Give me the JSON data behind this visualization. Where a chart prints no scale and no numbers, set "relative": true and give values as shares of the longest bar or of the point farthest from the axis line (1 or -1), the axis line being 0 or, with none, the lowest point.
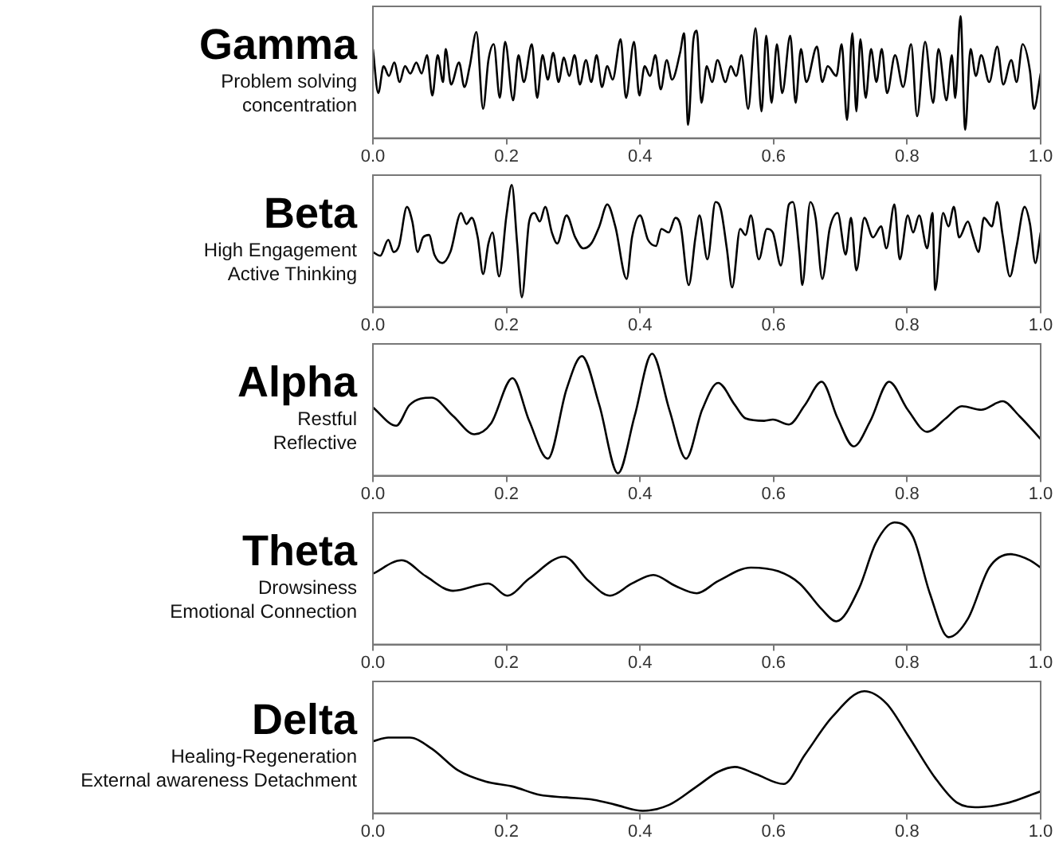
{
  "chart_data": [
    {
      "type": "line",
      "title": "Gamma",
      "annotations": [
        "Problem solving",
        "concentration"
      ],
      "relative": true,
      "marker": "none",
      "color": "#000000",
      "xlim": [
        0,
        1
      ],
      "xticks": [
        {
          "value": 0,
          "label": "0.0"
        },
        {
          "value": 0.2,
          "label": "0.2"
        },
        {
          "value": 0.4,
          "label": "0.4"
        },
        {
          "value": 0.6,
          "label": "0.6"
        },
        {
          "value": 0.8,
          "label": "0.8"
        },
        {
          "value": 1,
          "label": "1.0"
        }
      ],
      "x": [
        0,
        0.008,
        0.016,
        0.024,
        0.032,
        0.04,
        0.048,
        0.056,
        0.065,
        0.073,
        0.081,
        0.089,
        0.097,
        0.105,
        0.109,
        0.117,
        0.129,
        0.137,
        0.145,
        0.155,
        0.165,
        0.173,
        0.181,
        0.19,
        0.198,
        0.21,
        0.218,
        0.226,
        0.238,
        0.246,
        0.254,
        0.262,
        0.27,
        0.278,
        0.286,
        0.294,
        0.302,
        0.31,
        0.319,
        0.327,
        0.335,
        0.343,
        0.351,
        0.359,
        0.371,
        0.379,
        0.391,
        0.399,
        0.407,
        0.415,
        0.423,
        0.431,
        0.44,
        0.448,
        0.46,
        0.466,
        0.472,
        0.48,
        0.485,
        0.492,
        0.5,
        0.508,
        0.516,
        0.528,
        0.536,
        0.544,
        0.552,
        0.562,
        0.573,
        0.582,
        0.589,
        0.597,
        0.605,
        0.613,
        0.625,
        0.633,
        0.641,
        0.649,
        0.665,
        0.673,
        0.681,
        0.694,
        0.702,
        0.71,
        0.718,
        0.724,
        0.73,
        0.738,
        0.746,
        0.754,
        0.762,
        0.77,
        0.782,
        0.794,
        0.806,
        0.815,
        0.827,
        0.839,
        0.847,
        0.859,
        0.867,
        0.872,
        0.88,
        0.887,
        0.895,
        0.903,
        0.911,
        0.923,
        0.935,
        0.944,
        0.956,
        0.964,
        0.973,
        0.984,
        0.99,
        1
      ],
      "values": [
        0.73,
        0.37,
        0.59,
        0.51,
        0.62,
        0.46,
        0.59,
        0.53,
        0.62,
        0.53,
        0.68,
        0.35,
        0.68,
        0.46,
        0.73,
        0.44,
        0.62,
        0.42,
        0.59,
        0.87,
        0.24,
        0.64,
        0.77,
        0.33,
        0.79,
        0.31,
        0.68,
        0.46,
        0.77,
        0.33,
        0.68,
        0.48,
        0.7,
        0.46,
        0.66,
        0.51,
        0.68,
        0.44,
        0.64,
        0.46,
        0.68,
        0.42,
        0.59,
        0.48,
        0.81,
        0.33,
        0.79,
        0.35,
        0.59,
        0.51,
        0.68,
        0.4,
        0.64,
        0.48,
        0.7,
        0.86,
        0.11,
        0.81,
        0.88,
        0.29,
        0.59,
        0.46,
        0.64,
        0.46,
        0.59,
        0.51,
        0.68,
        0.24,
        0.9,
        0.22,
        0.84,
        0.29,
        0.77,
        0.37,
        0.84,
        0.29,
        0.73,
        0.46,
        0.75,
        0.46,
        0.59,
        0.51,
        0.77,
        0.15,
        0.86,
        0.22,
        0.81,
        0.33,
        0.73,
        0.46,
        0.73,
        0.37,
        0.68,
        0.42,
        0.77,
        0.18,
        0.79,
        0.29,
        0.73,
        0.31,
        0.68,
        0.33,
        1.0,
        0.07,
        0.73,
        0.51,
        0.68,
        0.46,
        0.75,
        0.44,
        0.64,
        0.46,
        0.77,
        0.55,
        0.24,
        0.53
      ]
    },
    {
      "type": "line",
      "title": "Beta",
      "annotations": [
        "High Engagement",
        "Active Thinking"
      ],
      "relative": true,
      "marker": "none",
      "color": "#000000",
      "xlim": [
        0,
        1
      ],
      "xticks": [
        {
          "value": 0,
          "label": "0.0"
        },
        {
          "value": 0.2,
          "label": "0.2"
        },
        {
          "value": 0.4,
          "label": "0.4"
        },
        {
          "value": 0.6,
          "label": "0.6"
        },
        {
          "value": 0.8,
          "label": "0.8"
        },
        {
          "value": 1,
          "label": "1.0"
        }
      ],
      "x": [
        0,
        0.011,
        0.023,
        0.031,
        0.039,
        0.051,
        0.059,
        0.067,
        0.075,
        0.084,
        0.092,
        0.104,
        0.116,
        0.132,
        0.14,
        0.148,
        0.157,
        0.165,
        0.173,
        0.179,
        0.189,
        0.2,
        0.208,
        0.216,
        0.223,
        0.234,
        0.242,
        0.25,
        0.258,
        0.268,
        0.276,
        0.29,
        0.303,
        0.315,
        0.327,
        0.339,
        0.351,
        0.363,
        0.38,
        0.388,
        0.4,
        0.412,
        0.424,
        0.432,
        0.443,
        0.453,
        0.461,
        0.473,
        0.483,
        0.489,
        0.501,
        0.513,
        0.521,
        0.53,
        0.538,
        0.55,
        0.558,
        0.566,
        0.578,
        0.59,
        0.599,
        0.611,
        0.623,
        0.629,
        0.639,
        0.643,
        0.655,
        0.663,
        0.673,
        0.684,
        0.696,
        0.708,
        0.716,
        0.724,
        0.736,
        0.749,
        0.761,
        0.769,
        0.781,
        0.789,
        0.801,
        0.809,
        0.818,
        0.83,
        0.838,
        0.842,
        0.854,
        0.862,
        0.87,
        0.878,
        0.891,
        0.899,
        0.907,
        0.915,
        0.927,
        0.935,
        0.943,
        0.954,
        0.964,
        0.976,
        0.984,
        0.992,
        1
      ],
      "values": [
        0.45,
        0.42,
        0.55,
        0.45,
        0.5,
        0.82,
        0.7,
        0.45,
        0.57,
        0.59,
        0.43,
        0.36,
        0.45,
        0.77,
        0.68,
        0.73,
        0.57,
        0.27,
        0.52,
        0.61,
        0.25,
        0.75,
        1.0,
        0.52,
        0.08,
        0.7,
        0.77,
        0.7,
        0.82,
        0.61,
        0.52,
        0.75,
        0.57,
        0.48,
        0.52,
        0.66,
        0.84,
        0.66,
        0.23,
        0.57,
        0.75,
        0.55,
        0.5,
        0.64,
        0.61,
        0.73,
        0.66,
        0.18,
        0.57,
        0.75,
        0.39,
        0.86,
        0.8,
        0.48,
        0.16,
        0.64,
        0.59,
        0.75,
        0.39,
        0.64,
        0.61,
        0.34,
        0.84,
        0.86,
        0.43,
        0.18,
        0.86,
        0.73,
        0.23,
        0.64,
        0.77,
        0.43,
        0.73,
        0.3,
        0.73,
        0.57,
        0.66,
        0.48,
        0.84,
        0.39,
        0.75,
        0.61,
        0.75,
        0.48,
        0.77,
        0.14,
        0.77,
        0.66,
        0.82,
        0.57,
        0.7,
        0.57,
        0.45,
        0.73,
        0.66,
        0.86,
        0.59,
        0.25,
        0.5,
        0.82,
        0.68,
        0.36,
        0.61
      ]
    },
    {
      "type": "line",
      "title": "Alpha",
      "annotations": [
        "Restful",
        "Reflective"
      ],
      "relative": true,
      "marker": "none",
      "color": "#000000",
      "xlim": [
        0,
        1
      ],
      "xticks": [
        {
          "value": 0,
          "label": "0.0"
        },
        {
          "value": 0.2,
          "label": "0.2"
        },
        {
          "value": 0.4,
          "label": "0.4"
        },
        {
          "value": 0.6,
          "label": "0.6"
        },
        {
          "value": 0.8,
          "label": "0.8"
        },
        {
          "value": 1,
          "label": "1.0"
        }
      ],
      "x": [
        0,
        0.035,
        0.055,
        0.088,
        0.12,
        0.152,
        0.177,
        0.209,
        0.234,
        0.262,
        0.29,
        0.313,
        0.339,
        0.367,
        0.392,
        0.418,
        0.444,
        0.469,
        0.493,
        0.517,
        0.542,
        0.558,
        0.586,
        0.599,
        0.623,
        0.647,
        0.672,
        0.696,
        0.72,
        0.745,
        0.773,
        0.801,
        0.83,
        0.858,
        0.882,
        0.911,
        0.943,
        0.968,
        1
      ],
      "values": [
        0.56,
        0.41,
        0.58,
        0.64,
        0.49,
        0.34,
        0.43,
        0.8,
        0.45,
        0.14,
        0.71,
        0.98,
        0.58,
        0.02,
        0.49,
        1.0,
        0.54,
        0.14,
        0.54,
        0.76,
        0.58,
        0.47,
        0.45,
        0.46,
        0.42,
        0.58,
        0.77,
        0.47,
        0.24,
        0.45,
        0.77,
        0.54,
        0.36,
        0.47,
        0.57,
        0.54,
        0.61,
        0.49,
        0.3
      ]
    },
    {
      "type": "line",
      "title": "Theta",
      "annotations": [
        "Drowsiness",
        "Emotional Connection"
      ],
      "relative": true,
      "marker": "none",
      "color": "#000000",
      "xlim": [
        0,
        1
      ],
      "xticks": [
        {
          "value": 0,
          "label": "0.0"
        },
        {
          "value": 0.2,
          "label": "0.2"
        },
        {
          "value": 0.4,
          "label": "0.4"
        },
        {
          "value": 0.6,
          "label": "0.6"
        },
        {
          "value": 0.8,
          "label": "0.8"
        },
        {
          "value": 1,
          "label": "1.0"
        }
      ],
      "x": [
        0,
        0.043,
        0.079,
        0.12,
        0.173,
        0.201,
        0.234,
        0.286,
        0.323,
        0.355,
        0.388,
        0.42,
        0.453,
        0.485,
        0.517,
        0.566,
        0.607,
        0.639,
        0.672,
        0.694,
        0.728,
        0.753,
        0.781,
        0.809,
        0.834,
        0.862,
        0.891,
        0.923,
        0.955,
        0.984,
        1
      ],
      "values": [
        0.58,
        0.69,
        0.56,
        0.44,
        0.5,
        0.4,
        0.54,
        0.72,
        0.52,
        0.4,
        0.5,
        0.57,
        0.48,
        0.42,
        0.52,
        0.63,
        0.6,
        0.5,
        0.29,
        0.19,
        0.46,
        0.83,
        1.0,
        0.88,
        0.42,
        0.06,
        0.21,
        0.63,
        0.74,
        0.69,
        0.63
      ]
    },
    {
      "type": "line",
      "title": "Delta",
      "annotations": [
        "Healing-Regeneration",
        "External awareness Detachment"
      ],
      "relative": true,
      "marker": "none",
      "color": "#000000",
      "xlim": [
        0,
        1
      ],
      "xticks": [
        {
          "value": 0,
          "label": "0.0"
        },
        {
          "value": 0.2,
          "label": "0.2"
        },
        {
          "value": 0.4,
          "label": "0.4"
        },
        {
          "value": 0.6,
          "label": "0.6"
        },
        {
          "value": 0.8,
          "label": "0.8"
        },
        {
          "value": 1,
          "label": "1.0"
        }
      ],
      "x": [
        0,
        0.023,
        0.055,
        0.088,
        0.128,
        0.169,
        0.209,
        0.25,
        0.29,
        0.331,
        0.363,
        0.404,
        0.444,
        0.485,
        0.517,
        0.542,
        0.574,
        0.615,
        0.647,
        0.688,
        0.736,
        0.769,
        0.801,
        0.842,
        0.874,
        0.907,
        0.947,
        1
      ],
      "values": [
        0.59,
        0.62,
        0.62,
        0.53,
        0.35,
        0.26,
        0.22,
        0.15,
        0.13,
        0.11,
        0.07,
        0.02,
        0.07,
        0.22,
        0.34,
        0.38,
        0.32,
        0.24,
        0.48,
        0.79,
        1.0,
        0.9,
        0.64,
        0.29,
        0.09,
        0.05,
        0.08,
        0.18
      ]
    }
  ]
}
